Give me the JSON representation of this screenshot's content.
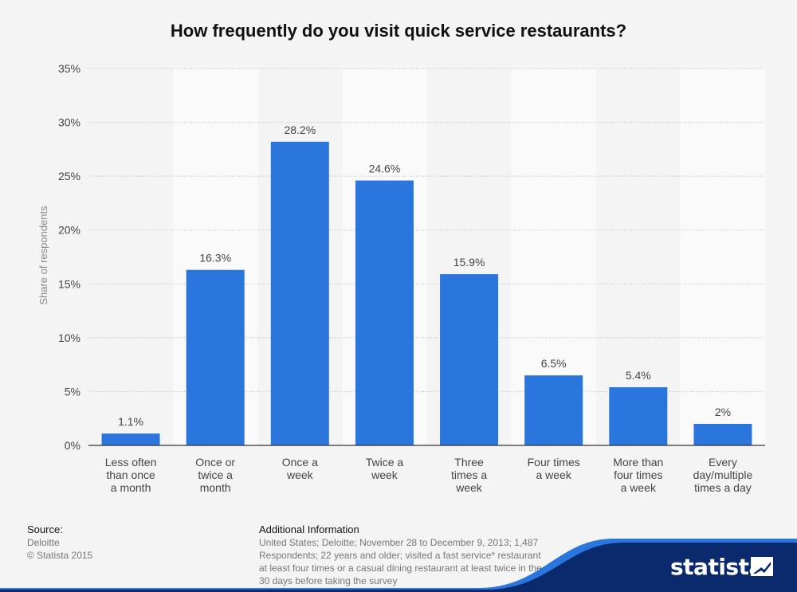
{
  "chart_data": {
    "type": "bar",
    "title": "How frequently do you visit quick service restaurants?",
    "xlabel": "",
    "ylabel": "Share of respondents",
    "ylim": [
      0,
      35
    ],
    "yticks": [
      0,
      5,
      10,
      15,
      20,
      25,
      30,
      35
    ],
    "ytick_labels": [
      "0%",
      "5%",
      "10%",
      "15%",
      "20%",
      "25%",
      "30%",
      "35%"
    ],
    "grid": true,
    "categories": [
      [
        "Less often",
        "than once",
        "a month"
      ],
      [
        "Once or",
        "twice a",
        "month"
      ],
      [
        "Once a",
        "week"
      ],
      [
        "Twice a",
        "week"
      ],
      [
        "Three",
        "times a",
        "week"
      ],
      [
        "Four times",
        "a week"
      ],
      [
        "More than",
        "four times",
        "a week"
      ],
      [
        "Every",
        "day/multiple",
        "times a day"
      ]
    ],
    "values": [
      1.1,
      16.3,
      28.2,
      24.6,
      15.9,
      6.5,
      5.4,
      2
    ],
    "value_labels": [
      "1.1%",
      "16.3%",
      "28.2%",
      "24.6%",
      "15.9%",
      "6.5%",
      "5.4%",
      "2%"
    ],
    "colors": {
      "bar": "#2a76dd",
      "band": "#fafafa",
      "plot_bg": "#f4f4f4",
      "grid": "#bbbbbb",
      "axis": "#333333",
      "text": "#444444"
    }
  },
  "footer": {
    "source_heading": "Source:",
    "source_lines": [
      "Deloitte",
      "© Statista 2015"
    ],
    "info_heading": "Additional Information",
    "info_lines": [
      "United States; Deloitte; November 28 to December 9, 2013; 1,487",
      "Respondents; 22 years and older; visited a fast service* restaurant",
      "at least four times or a casual dining restaurant at least twice in the",
      "30 days before taking the survey"
    ]
  },
  "brand": {
    "name": "statista",
    "color": "#0b2a6e",
    "accent": "#2a76dd",
    "icon": "statista-logo-icon"
  }
}
